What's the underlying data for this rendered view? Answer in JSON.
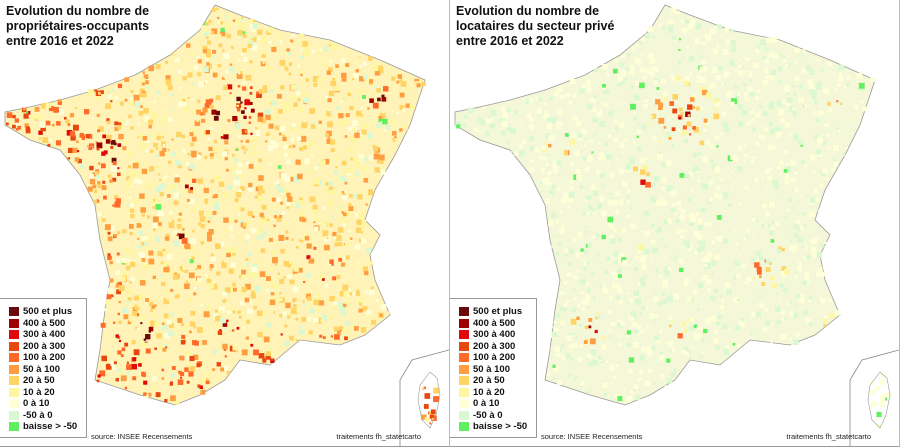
{
  "panels": [
    {
      "title": [
        "Evolution du nombre de",
        "propriétaires-occupants",
        "entre 2016 et 2022"
      ],
      "intensity": "high"
    },
    {
      "title": [
        "Evolution du nombre de",
        "locataires du secteur privé",
        "entre 2016 et 2022"
      ],
      "intensity": "low"
    }
  ],
  "legend": [
    {
      "label": "500 et plus",
      "color": "#6b0a0a"
    },
    {
      "label": "400 à 500",
      "color": "#a00000"
    },
    {
      "label": "300 à 400",
      "color": "#e00808"
    },
    {
      "label": "200 à 300",
      "color": "#e84810"
    },
    {
      "label": "100 à 200",
      "color": "#ff6a2a"
    },
    {
      "label": "50 à 100",
      "color": "#ff9e40"
    },
    {
      "label": "20 à  50",
      "color": "#ffd464"
    },
    {
      "label": "10 à  20",
      "color": "#fff6a0"
    },
    {
      "label": "0 à  10",
      "color": "#ffffd8"
    },
    {
      "label": "-50 à   0",
      "color": "#dcf8d2"
    },
    {
      "label": "baisse > -50",
      "color": "#5ef05e"
    }
  ],
  "source": "source: INSEE Recensements",
  "credit": "traitements fh_statetcarto"
}
